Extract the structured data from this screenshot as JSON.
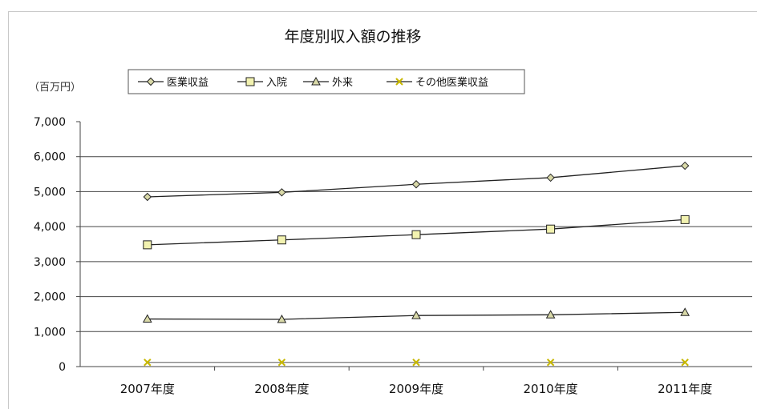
{
  "chart_data": {
    "type": "line",
    "title": "年度別収入額の推移",
    "ylabel": "（百万円）",
    "xlabel": "",
    "categories": [
      "2007年度",
      "2008年度",
      "2009年度",
      "2010年度",
      "2011年度"
    ],
    "ylim": [
      0,
      7000
    ],
    "yticks": [
      0,
      1000,
      2000,
      3000,
      4000,
      5000,
      6000,
      7000
    ],
    "ytick_labels": [
      "0",
      "1,000",
      "2,000",
      "3,000",
      "4,000",
      "5,000",
      "6,000",
      "7,000"
    ],
    "grid": true,
    "legend_position": "top",
    "series": [
      {
        "name": "医業収益",
        "marker": "diamond",
        "color": "#d9d9a8",
        "values": [
          4850,
          4980,
          5210,
          5400,
          5740
        ]
      },
      {
        "name": "入院",
        "marker": "square",
        "color": "#f2f2b0",
        "values": [
          3480,
          3620,
          3770,
          3930,
          4200
        ]
      },
      {
        "name": "外来",
        "marker": "triangle",
        "color": "#d9d9a8",
        "values": [
          1360,
          1350,
          1460,
          1480,
          1550
        ]
      },
      {
        "name": "その他医業収益",
        "marker": "x",
        "color": "#c8b800",
        "values": [
          120,
          120,
          120,
          120,
          120
        ]
      }
    ]
  }
}
